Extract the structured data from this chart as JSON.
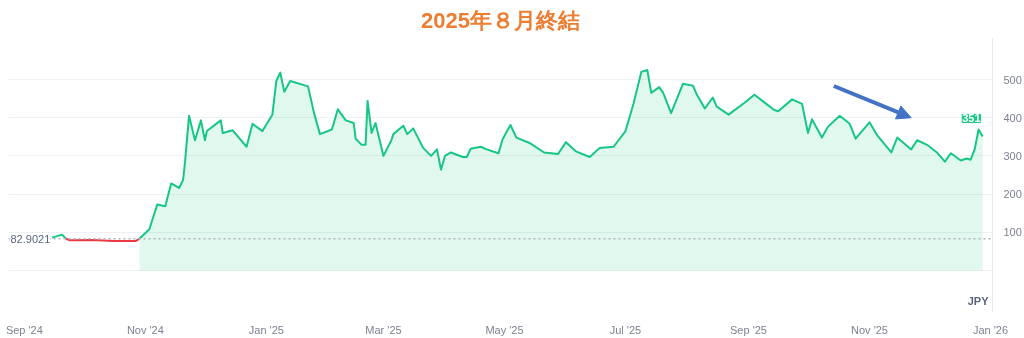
{
  "chart_data": {
    "type": "area",
    "title": "2025年８月終結",
    "series": [
      {
        "type": "line",
        "color": "#16c784",
        "x": [
          "2024-09-15",
          "2024-09-20",
          "2024-09-22"
        ],
        "values": [
          86,
          94,
          83
        ]
      },
      {
        "type": "line",
        "color": "#ea3943",
        "x": [
          "2024-09-22",
          "2024-09-24",
          "2024-10-05",
          "2024-10-16",
          "2024-10-27",
          "2024-10-29"
        ],
        "values": [
          83,
          79,
          80,
          77,
          77,
          83
        ]
      },
      {
        "color": "#16c784",
        "x": [
          "2024-10-29",
          "2024-11-03",
          "2024-11-07",
          "2024-11-11",
          "2024-11-14",
          "2024-11-18",
          "2024-11-20",
          "2024-11-21",
          "2024-11-23",
          "2024-11-26",
          "2024-11-29",
          "2024-12-01",
          "2024-12-02",
          "2024-12-09",
          "2024-12-10",
          "2024-12-15",
          "2024-12-22",
          "2024-12-25",
          "2024-12-30",
          "2025-01-04",
          "2025-01-06",
          "2025-01-08",
          "2025-01-10",
          "2025-01-13",
          "2025-01-22",
          "2025-01-25",
          "2025-01-28",
          "2025-02-03",
          "2025-02-06",
          "2025-02-10",
          "2025-02-14",
          "2025-02-15",
          "2025-02-18",
          "2025-02-20",
          "2025-02-21",
          "2025-02-23",
          "2025-02-25",
          "2025-03-01",
          "2025-03-05",
          "2025-03-06",
          "2025-03-11",
          "2025-03-13",
          "2025-03-16",
          "2025-03-21",
          "2025-03-25",
          "2025-03-28",
          "2025-03-30",
          "2025-04-01",
          "2025-04-04",
          "2025-04-10",
          "2025-04-12",
          "2025-04-14",
          "2025-04-19",
          "2025-04-22",
          "2025-04-28",
          "2025-04-30",
          "2025-05-04",
          "2025-05-07",
          "2025-05-14",
          "2025-05-21",
          "2025-05-28",
          "2025-06-01",
          "2025-06-06",
          "2025-06-13",
          "2025-06-18",
          "2025-06-25",
          "2025-07-01",
          "2025-07-05",
          "2025-07-09",
          "2025-07-12",
          "2025-07-14",
          "2025-07-18",
          "2025-07-20",
          "2025-07-24",
          "2025-07-30",
          "2025-08-04",
          "2025-08-06",
          "2025-08-10",
          "2025-08-14",
          "2025-08-16",
          "2025-08-22",
          "2025-08-30",
          "2025-09-04",
          "2025-09-08",
          "2025-09-14",
          "2025-09-16",
          "2025-09-23",
          "2025-09-28",
          "2025-10-01",
          "2025-10-03",
          "2025-10-08",
          "2025-10-11",
          "2025-10-17",
          "2025-10-22",
          "2025-10-25",
          "2025-11-01",
          "2025-11-05",
          "2025-11-12",
          "2025-11-15",
          "2025-11-22",
          "2025-11-25",
          "2025-11-30",
          "2025-12-05",
          "2025-12-09",
          "2025-12-12",
          "2025-12-17",
          "2025-12-20",
          "2025-12-22",
          "2025-12-24",
          "2025-12-26",
          "2025-12-28"
        ],
        "values": [
          83,
          108,
          173,
          168,
          228,
          216,
          237,
          285,
          405,
          341,
          393,
          341,
          365,
          393,
          360,
          367,
          324,
          384,
          365,
          408,
          496,
          518,
          468,
          496,
          482,
          412,
          357,
          369,
          422,
          393,
          386,
          345,
          329,
          329,
          444,
          360,
          386,
          300,
          341,
          357,
          379,
          357,
          372,
          321,
          300,
          317,
          264,
          300,
          309,
          297,
          297,
          319,
          324,
          317,
          307,
          343,
          381,
          348,
          333,
          309,
          305,
          336,
          312,
          297,
          321,
          324,
          365,
          436,
          520,
          525,
          465,
          480,
          465,
          412,
          489,
          484,
          460,
          424,
          453,
          429,
          408,
          439,
          460,
          444,
          420,
          417,
          448,
          436,
          360,
          396,
          348,
          376,
          405,
          384,
          345,
          388,
          353,
          309,
          348,
          317,
          341,
          329,
          309,
          285,
          307,
          288,
          293,
          290,
          317,
          369,
          351
        ]
      }
    ],
    "xlim": [
      "2024-08-24",
      "2026-01-02"
    ],
    "xticks": [
      {
        "value": "2024-09-01",
        "label": "Sep '24"
      },
      {
        "value": "2024-11-01",
        "label": "Nov '24"
      },
      {
        "value": "2025-01-01",
        "label": "Jan '25"
      },
      {
        "value": "2025-03-01",
        "label": "Mar '25"
      },
      {
        "value": "2025-05-01",
        "label": "May '25"
      },
      {
        "value": "2025-07-01",
        "label": "Jul '25"
      },
      {
        "value": "2025-09-01",
        "label": "Sep '25"
      },
      {
        "value": "2025-11-01",
        "label": "Nov '25"
      },
      {
        "value": "2026-01-01",
        "label": "Jan '26"
      }
    ],
    "ylim": [
      -110,
      610
    ],
    "yticks": [
      {
        "value": 0,
        "label": null
      },
      100,
      200,
      300,
      400,
      500
    ],
    "grid": "y",
    "ref_lines": [
      {
        "axis": "y",
        "value": 82.9021,
        "label": "82.9021",
        "line_style": "dotted",
        "color": "#b0b4bc"
      }
    ],
    "annotations": [
      {
        "text": "351",
        "x": "2025-12-28",
        "y": 351
      },
      "JPY"
    ]
  }
}
